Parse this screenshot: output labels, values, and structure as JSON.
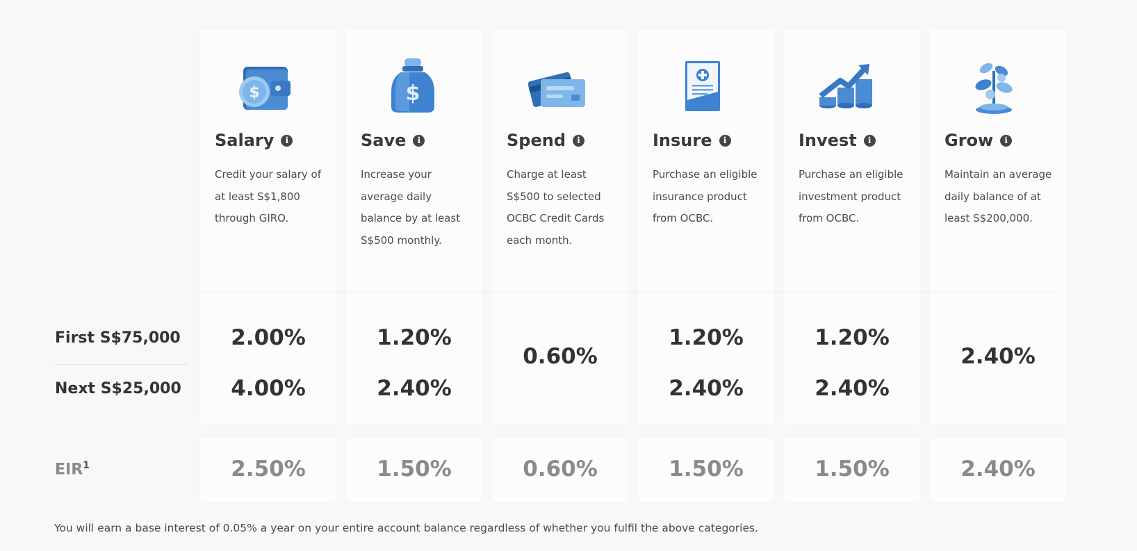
{
  "categories": [
    {
      "title": "Salary",
      "desc": "Credit your salary of at least S$1,800 through GIRO.",
      "icon": "wallet-icon",
      "first": "2.00%",
      "next": "4.00%",
      "merged": null,
      "eir": "2.50%"
    },
    {
      "title": "Save",
      "desc": "Increase your average daily balance by at least S$500 monthly.",
      "icon": "money-bag-icon",
      "first": "1.20%",
      "next": "2.40%",
      "merged": null,
      "eir": "1.50%"
    },
    {
      "title": "Spend",
      "desc": "Charge at least S$500 to selected OCBC Credit Cards each month.",
      "icon": "credit-card-icon",
      "first": null,
      "next": null,
      "merged": "0.60%",
      "eir": "0.60%"
    },
    {
      "title": "Insure",
      "desc": "Purchase an eligible insurance product from OCBC.",
      "icon": "insurance-document-icon",
      "first": "1.20%",
      "next": "2.40%",
      "merged": null,
      "eir": "1.50%"
    },
    {
      "title": "Invest",
      "desc": "Purchase an eligible investment product from OCBC.",
      "icon": "growth-chart-icon",
      "first": "1.20%",
      "next": "2.40%",
      "merged": null,
      "eir": "1.50%"
    },
    {
      "title": "Grow",
      "desc": "Maintain an average daily balance of at least S$200,000.",
      "icon": "plant-coins-icon",
      "first": null,
      "next": null,
      "merged": "2.40%",
      "eir": "2.40%"
    }
  ],
  "row_labels": {
    "first": "First S$75,000",
    "next": "Next S$25,000",
    "eir": "EIR",
    "eir_sup": "1"
  },
  "footnote": "You will earn a base interest of 0.05% a year on your entire account balance regardless of whether you fulfil the above categories.",
  "colors": {
    "icon_blue": "#3f7fc9",
    "icon_light": "#8ec0ee",
    "eir_gray": "#8a8a8a"
  }
}
